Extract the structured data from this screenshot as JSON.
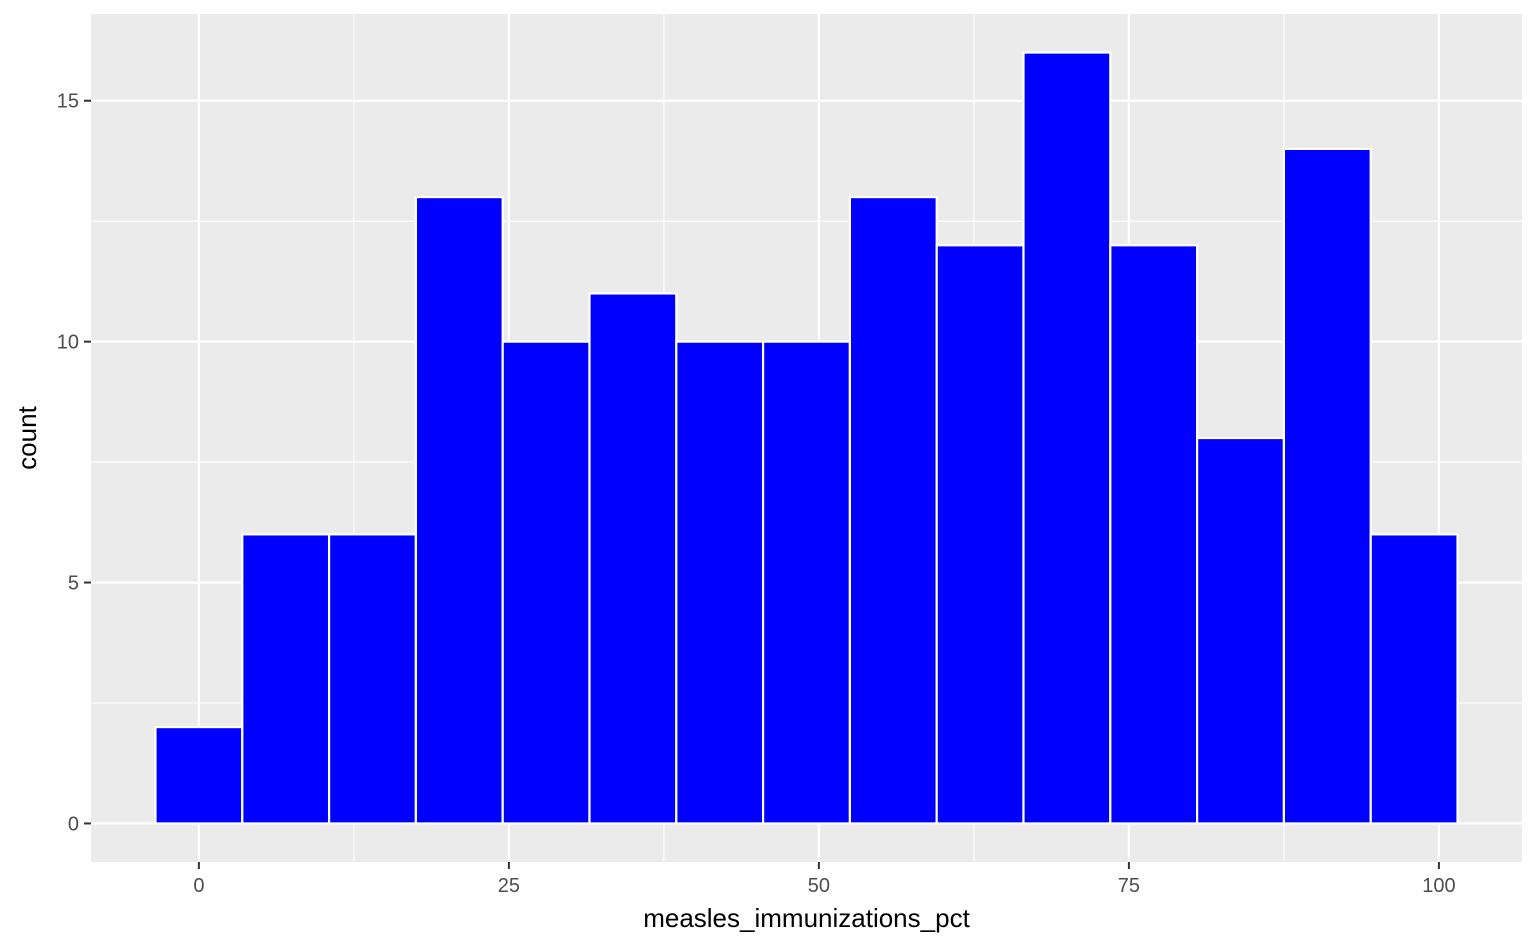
{
  "chart_data": {
    "type": "bar",
    "subtype": "histogram",
    "title": "",
    "xlabel": "measles_immunizations_pct",
    "ylabel": "count",
    "bin_width": 7,
    "bin_starts": [
      -3.5,
      3.5,
      10.5,
      17.5,
      24.5,
      31.5,
      38.5,
      45.5,
      52.5,
      59.5,
      66.5,
      73.5,
      80.5,
      87.5,
      94.5
    ],
    "values": [
      2,
      6,
      6,
      13,
      10,
      11,
      10,
      10,
      13,
      12,
      16,
      12,
      8,
      14,
      6
    ],
    "xlim": [
      -8.7,
      106.7
    ],
    "ylim": [
      -0.8,
      16.8
    ],
    "x_ticks": [
      0,
      25,
      50,
      75,
      100
    ],
    "x_tick_labels": [
      "0",
      "25",
      "50",
      "75",
      "100"
    ],
    "x_minor_ticks": [
      12.5,
      37.5,
      62.5,
      87.5
    ],
    "y_ticks": [
      0,
      5,
      10,
      15
    ],
    "y_tick_labels": [
      "0",
      "5",
      "10",
      "15"
    ],
    "y_minor_ticks": [
      2.5,
      7.5,
      12.5
    ],
    "grid": true,
    "legend": "none",
    "colors": {
      "bar_fill": "#0000FF",
      "bar_outline": "#FFFFFF",
      "panel_background": "#EBEBEB",
      "grid_line": "#FFFFFF",
      "tick_label": "#4D4D4D",
      "axis_title": "#000000"
    }
  }
}
